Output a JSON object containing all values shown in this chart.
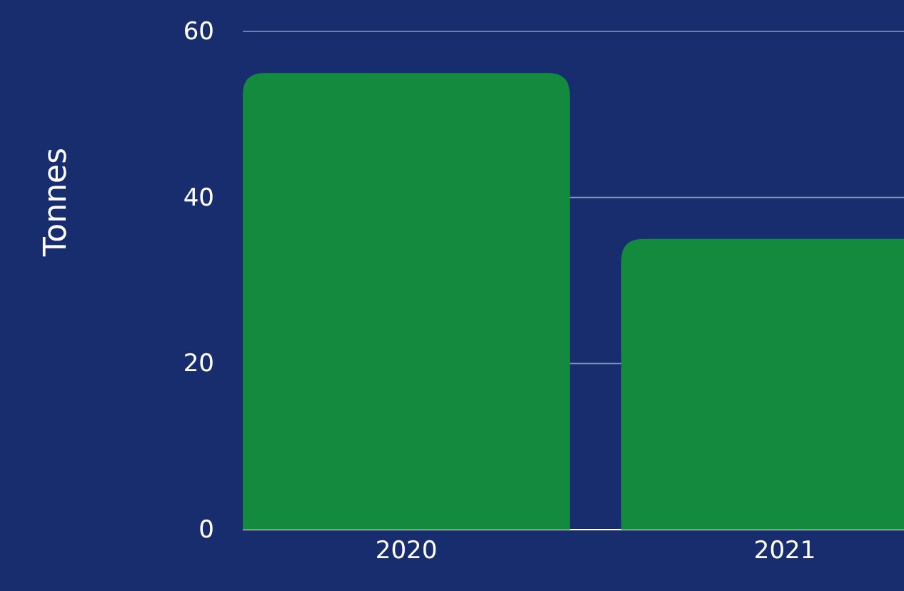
{
  "chart_data": {
    "type": "bar",
    "ylabel": "Tonnes",
    "categories": [
      "2020",
      "2021"
    ],
    "values": [
      55,
      35
    ],
    "color": "#138a3e",
    "ylim": [
      0,
      60
    ],
    "yticks": [
      0,
      20,
      40,
      60
    ],
    "grid": "y"
  }
}
